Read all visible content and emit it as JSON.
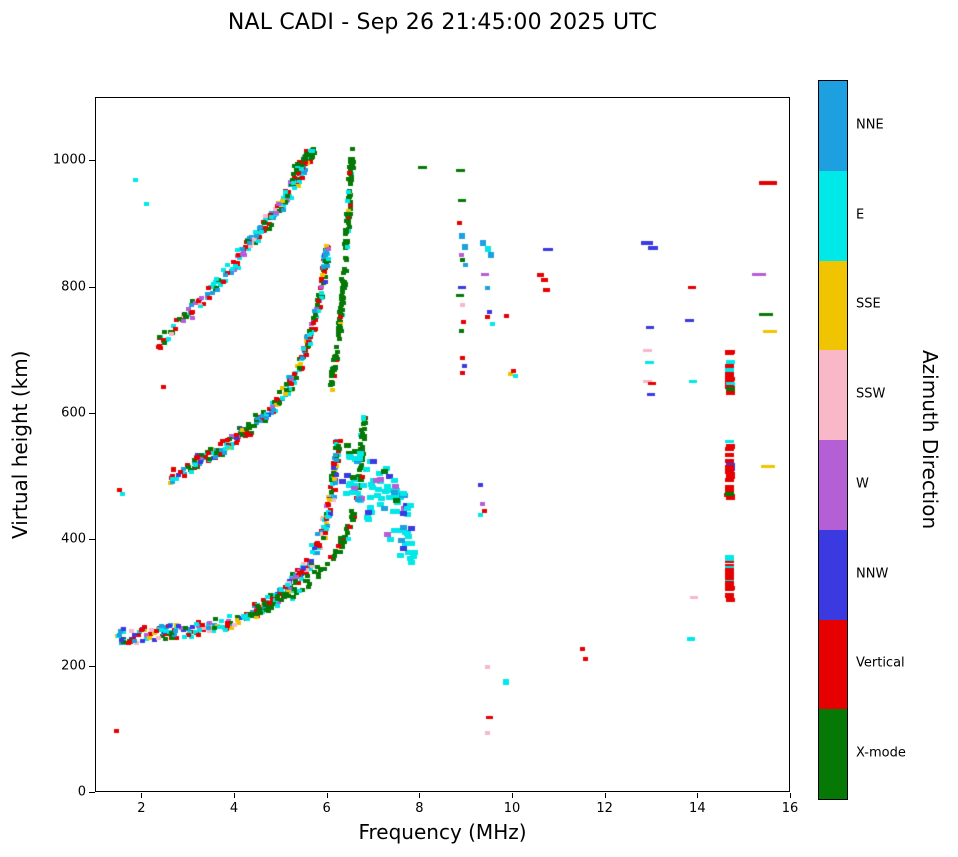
{
  "chart_data": {
    "type": "scatter",
    "title": "NAL CADI - Sep 26 21:45:00 2025 UTC",
    "xlabel": "Frequency (MHz)",
    "ylabel": "Virtual height (km)",
    "xlim": [
      1,
      16
    ],
    "ylim": [
      0,
      1100
    ],
    "xticks": [
      2,
      4,
      6,
      8,
      10,
      12,
      14,
      16
    ],
    "yticks": [
      0,
      200,
      400,
      600,
      800,
      1000
    ],
    "grid": false,
    "legend_position": "right-colorbar",
    "colorbar": {
      "label": "Azimuth Direction",
      "categories": [
        {
          "label": "NNE",
          "color": "#1E9FE0"
        },
        {
          "label": "E",
          "color": "#00E8E8"
        },
        {
          "label": "SSE",
          "color": "#F0C400"
        },
        {
          "label": "SSW",
          "color": "#F8B8C8"
        },
        {
          "label": "W",
          "color": "#B55FD6"
        },
        {
          "label": "NNW",
          "color": "#3A3AE0"
        },
        {
          "label": "Vertical",
          "color": "#E60000"
        },
        {
          "label": "X-mode",
          "color": "#067806"
        }
      ]
    },
    "bands": [
      {
        "name": "first-hop-o-trace",
        "path": [
          [
            1.45,
            247
          ],
          [
            1.9,
            250
          ],
          [
            2.4,
            253
          ],
          [
            2.9,
            257
          ],
          [
            3.4,
            262
          ],
          [
            3.9,
            270
          ],
          [
            4.3,
            283
          ],
          [
            4.7,
            299
          ],
          [
            5.0,
            316
          ],
          [
            5.3,
            338
          ],
          [
            5.6,
            366
          ],
          [
            5.85,
            402
          ],
          [
            6.0,
            438
          ],
          [
            6.1,
            478
          ],
          [
            6.17,
            520
          ],
          [
            6.22,
            555
          ]
        ],
        "width_km": 24,
        "freq_jitter": 0.12,
        "count": 340,
        "size": [
          5,
          4
        ],
        "colors": {
          "E": 0.26,
          "Vertical": 0.22,
          "X-mode": 0.15,
          "NNE": 0.12,
          "NNW": 0.08,
          "W": 0.06,
          "SSE": 0.07,
          "SSW": 0.04
        }
      },
      {
        "name": "first-hop-x-trace",
        "path": [
          [
            4.2,
            280
          ],
          [
            4.7,
            295
          ],
          [
            5.2,
            315
          ],
          [
            5.7,
            342
          ],
          [
            6.1,
            372
          ],
          [
            6.4,
            408
          ],
          [
            6.6,
            450
          ],
          [
            6.7,
            500
          ],
          [
            6.75,
            555
          ],
          [
            6.78,
            600
          ]
        ],
        "width_km": 16,
        "freq_jitter": 0.1,
        "count": 130,
        "size": [
          5,
          4
        ],
        "colors": {
          "X-mode": 0.78,
          "Vertical": 0.1,
          "E": 0.12
        }
      },
      {
        "name": "spread-f-scatter",
        "path": [
          [
            6.35,
            505
          ],
          [
            6.8,
            488
          ],
          [
            7.2,
            462
          ],
          [
            7.6,
            432
          ],
          [
            7.85,
            405
          ]
        ],
        "width_km": 110,
        "freq_jitter": 0.15,
        "count": 95,
        "size": [
          7,
          5
        ],
        "colors": {
          "E": 0.62,
          "NNE": 0.12,
          "NNW": 0.13,
          "W": 0.08,
          "X-mode": 0.05
        }
      },
      {
        "name": "second-hop-o-trace",
        "path": [
          [
            2.55,
            498
          ],
          [
            3.0,
            515
          ],
          [
            3.45,
            533
          ],
          [
            3.9,
            554
          ],
          [
            4.3,
            577
          ],
          [
            4.7,
            602
          ],
          [
            5.0,
            628
          ],
          [
            5.25,
            655
          ],
          [
            5.45,
            685
          ],
          [
            5.62,
            720
          ],
          [
            5.76,
            758
          ],
          [
            5.87,
            800
          ],
          [
            5.95,
            840
          ],
          [
            6.0,
            862
          ]
        ],
        "width_km": 22,
        "freq_jitter": 0.1,
        "count": 280,
        "size": [
          5,
          4
        ],
        "colors": {
          "NNE": 0.2,
          "E": 0.2,
          "Vertical": 0.22,
          "X-mode": 0.22,
          "SSE": 0.06,
          "W": 0.06,
          "NNW": 0.04
        }
      },
      {
        "name": "second-hop-x-trace",
        "path": [
          [
            6.05,
            640
          ],
          [
            6.2,
            700
          ],
          [
            6.3,
            765
          ],
          [
            6.38,
            835
          ],
          [
            6.44,
            905
          ],
          [
            6.49,
            965
          ],
          [
            6.53,
            1015
          ]
        ],
        "width_km": 20,
        "freq_jitter": 0.08,
        "count": 150,
        "size": [
          5,
          4
        ],
        "colors": {
          "X-mode": 0.84,
          "Vertical": 0.06,
          "SSE": 0.05,
          "E": 0.05
        }
      },
      {
        "name": "third-hop-trace",
        "path": [
          [
            2.35,
            712
          ],
          [
            2.75,
            742
          ],
          [
            3.15,
            772
          ],
          [
            3.55,
            802
          ],
          [
            3.9,
            830
          ],
          [
            4.2,
            858
          ],
          [
            4.5,
            885
          ],
          [
            4.78,
            910
          ],
          [
            5.02,
            935
          ],
          [
            5.25,
            960
          ],
          [
            5.45,
            985
          ],
          [
            5.6,
            1008
          ]
        ],
        "width_km": 24,
        "freq_jitter": 0.1,
        "count": 210,
        "size": [
          5,
          4
        ],
        "colors": {
          "Vertical": 0.26,
          "E": 0.24,
          "NNE": 0.2,
          "X-mode": 0.14,
          "W": 0.08,
          "SSW": 0.04,
          "SSE": 0.04
        }
      },
      {
        "name": "third-hop-peak-green",
        "path": [
          [
            5.3,
            985
          ],
          [
            5.45,
            998
          ],
          [
            5.6,
            1010
          ],
          [
            5.7,
            1015
          ]
        ],
        "width_km": 16,
        "freq_jitter": 0.08,
        "count": 40,
        "size": [
          5,
          4
        ],
        "colors": {
          "X-mode": 0.7,
          "Vertical": 0.12,
          "E": 0.18
        }
      },
      {
        "name": "red-stack-630-700",
        "path": [
          [
            14.68,
            632
          ],
          [
            14.68,
            698
          ]
        ],
        "width_km": 6,
        "freq_jitter": 0.04,
        "count": 16,
        "size": [
          9,
          4
        ],
        "colors": {
          "Vertical": 0.78,
          "E": 0.12,
          "X-mode": 0.1
        }
      },
      {
        "name": "red-stack-460-555",
        "path": [
          [
            14.68,
            462
          ],
          [
            14.68,
            552
          ]
        ],
        "width_km": 6,
        "freq_jitter": 0.04,
        "count": 24,
        "size": [
          9,
          4
        ],
        "colors": {
          "Vertical": 0.84,
          "X-mode": 0.06,
          "SSE": 0.05,
          "NNW": 0.05
        }
      },
      {
        "name": "red-stack-300-375",
        "path": [
          [
            14.68,
            302
          ],
          [
            14.68,
            372
          ]
        ],
        "width_km": 6,
        "freq_jitter": 0.04,
        "count": 20,
        "size": [
          9,
          4
        ],
        "colors": {
          "Vertical": 0.8,
          "E": 0.12,
          "X-mode": 0.08
        }
      }
    ],
    "points": [
      [
        1.45,
        98,
        "Vertical"
      ],
      [
        1.5,
        480,
        "Vertical"
      ],
      [
        1.57,
        474,
        "E"
      ],
      [
        1.85,
        970,
        "E"
      ],
      [
        2.1,
        932,
        "E"
      ],
      [
        2.45,
        642,
        "Vertical"
      ],
      [
        8.05,
        990,
        "X-mode",
        9,
        3
      ],
      [
        8.87,
        985,
        "X-mode",
        9,
        3
      ],
      [
        8.9,
        938,
        "X-mode",
        8,
        3
      ],
      [
        8.85,
        902,
        "Vertical"
      ],
      [
        8.9,
        882,
        "NNE",
        6,
        6
      ],
      [
        8.96,
        864,
        "NNE",
        6,
        6
      ],
      [
        8.88,
        852,
        "W"
      ],
      [
        8.92,
        843,
        "X-mode"
      ],
      [
        8.98,
        836,
        "NNE"
      ],
      [
        8.9,
        800,
        "NNW",
        8,
        3
      ],
      [
        8.86,
        788,
        "X-mode",
        8,
        3
      ],
      [
        8.9,
        772,
        "SSW"
      ],
      [
        8.93,
        746,
        "Vertical"
      ],
      [
        8.88,
        731,
        "X-mode"
      ],
      [
        8.9,
        688,
        "Vertical"
      ],
      [
        8.96,
        676,
        "NNW"
      ],
      [
        8.9,
        664,
        "Vertical"
      ],
      [
        9.36,
        870,
        "NNE",
        6,
        6
      ],
      [
        9.46,
        861,
        "E",
        6,
        6
      ],
      [
        9.53,
        852,
        "NNE",
        6,
        6
      ],
      [
        9.4,
        820,
        "W",
        8,
        3
      ],
      [
        9.45,
        800,
        "NNE"
      ],
      [
        9.5,
        762,
        "NNW"
      ],
      [
        9.44,
        754,
        "Vertical"
      ],
      [
        9.56,
        742,
        "E"
      ],
      [
        9.3,
        487,
        "NNW"
      ],
      [
        9.34,
        458,
        "W"
      ],
      [
        9.38,
        447,
        "Vertical"
      ],
      [
        9.3,
        440,
        "E"
      ],
      [
        9.45,
        200,
        "SSW"
      ],
      [
        9.5,
        120,
        "Vertical",
        7,
        3
      ],
      [
        9.46,
        95,
        "SSW"
      ],
      [
        9.85,
        755,
        "Vertical"
      ],
      [
        9.95,
        663,
        "SSE"
      ],
      [
        10.0,
        668,
        "Vertical"
      ],
      [
        10.06,
        660,
        "E"
      ],
      [
        9.85,
        175,
        "E",
        6,
        6
      ],
      [
        10.6,
        820,
        "Vertical",
        7,
        4
      ],
      [
        10.68,
        812,
        "Vertical",
        7,
        4
      ],
      [
        10.72,
        796,
        "Vertical",
        7,
        4
      ],
      [
        10.76,
        860,
        "NNW",
        10,
        3
      ],
      [
        11.5,
        228,
        "Vertical"
      ],
      [
        11.56,
        212,
        "Vertical"
      ],
      [
        12.9,
        870,
        "NNW",
        12,
        4
      ],
      [
        13.03,
        862,
        "NNW",
        10,
        4
      ],
      [
        12.95,
        737,
        "NNW",
        8,
        3
      ],
      [
        12.9,
        700,
        "SSW",
        9,
        3
      ],
      [
        12.95,
        681,
        "E",
        9,
        3
      ],
      [
        12.9,
        652,
        "SSW",
        9,
        3
      ],
      [
        13.0,
        648,
        "Vertical",
        8,
        3
      ],
      [
        12.97,
        630,
        "NNW",
        8,
        3
      ],
      [
        13.82,
        748,
        "NNW",
        9,
        3
      ],
      [
        13.87,
        800,
        "Vertical",
        8,
        3
      ],
      [
        13.9,
        310,
        "SSW",
        8,
        3
      ],
      [
        13.85,
        243,
        "E",
        8,
        4
      ],
      [
        13.88,
        652,
        "E",
        8,
        3
      ],
      [
        14.68,
        374,
        "E",
        9,
        4
      ],
      [
        14.68,
        556,
        "E",
        9,
        3
      ],
      [
        15.5,
        965,
        "Vertical",
        18,
        4
      ],
      [
        15.3,
        820,
        "W",
        14,
        3
      ],
      [
        15.45,
        757,
        "X-mode",
        14,
        3
      ],
      [
        15.55,
        730,
        "SSE",
        14,
        3
      ],
      [
        15.5,
        517,
        "SSE",
        14,
        3
      ]
    ]
  }
}
